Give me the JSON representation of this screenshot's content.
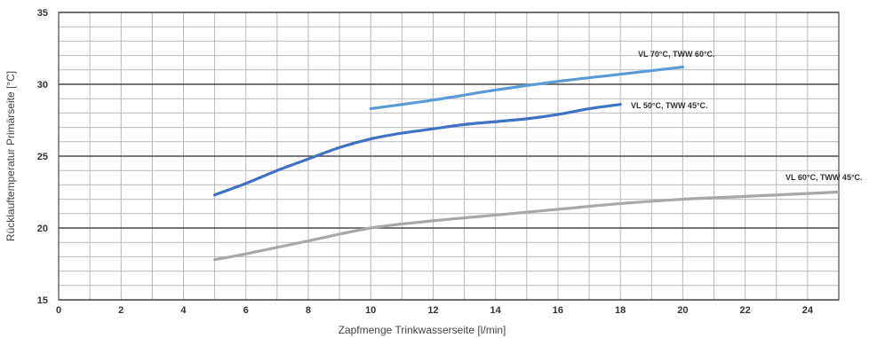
{
  "chart_data": {
    "type": "line",
    "xlabel": "Zapfmenge Trinkwasserseite [l/min]",
    "ylabel": "Rücklauftemperatur Primärseite [°C]",
    "xlim": [
      0,
      25
    ],
    "ylim": [
      15,
      35
    ],
    "x_ticks": [
      0,
      2,
      4,
      6,
      8,
      10,
      12,
      14,
      16,
      18,
      20,
      22,
      24
    ],
    "y_ticks": [
      15,
      20,
      25,
      30,
      35
    ],
    "grid": true,
    "series": [
      {
        "name": "VL 70°C, TWW 60°C.",
        "color": "#5b9bd5",
        "x": [
          10,
          12,
          14,
          16,
          18,
          20
        ],
        "y": [
          28.3,
          28.9,
          29.6,
          30.2,
          30.7,
          31.2
        ]
      },
      {
        "name": "VL 50°C, TWW 45°C.",
        "color": "#3f72c4",
        "x": [
          5,
          6,
          7,
          8,
          9,
          10,
          11,
          12,
          13,
          14,
          15,
          16,
          17,
          18
        ],
        "y": [
          22.3,
          23.1,
          24.0,
          24.8,
          25.6,
          26.2,
          26.6,
          26.9,
          27.2,
          27.4,
          27.6,
          27.9,
          28.3,
          28.6
        ]
      },
      {
        "name": "VL 60°C, TWW 45°C.",
        "color": "#a8a8a8",
        "x": [
          5,
          6,
          8,
          10,
          12,
          14,
          16,
          18,
          20,
          22,
          24,
          25
        ],
        "y": [
          17.8,
          18.2,
          19.1,
          20.0,
          20.5,
          20.9,
          21.3,
          21.7,
          22.0,
          22.2,
          22.4,
          22.5
        ]
      }
    ]
  }
}
